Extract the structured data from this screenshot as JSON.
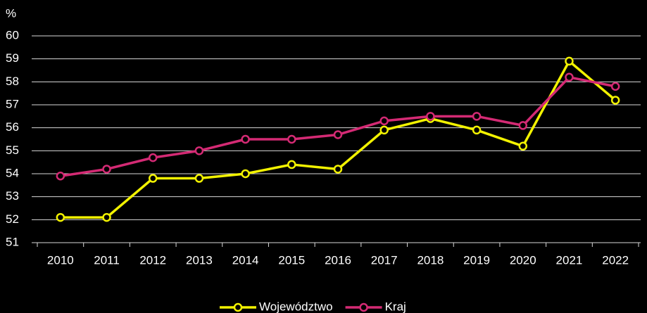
{
  "chart_data": {
    "type": "line",
    "y_label": "%",
    "categories": [
      "2010",
      "2011",
      "2012",
      "2013",
      "2014",
      "2015",
      "2016",
      "2017",
      "2018",
      "2019",
      "2020",
      "2021",
      "2022"
    ],
    "series": [
      {
        "name": "Województwo",
        "color": "#f2f200",
        "values": [
          52.1,
          52.1,
          53.8,
          53.8,
          54.0,
          54.4,
          54.2,
          55.9,
          56.4,
          55.9,
          55.2,
          58.9,
          57.2
        ]
      },
      {
        "name": "Kraj",
        "color": "#d42a74",
        "values": [
          53.9,
          54.2,
          54.7,
          55.0,
          55.5,
          55.5,
          55.7,
          56.3,
          56.5,
          56.5,
          56.1,
          58.2,
          57.8
        ]
      }
    ],
    "ylim": [
      51,
      60
    ],
    "yticks": [
      51,
      52,
      53,
      54,
      55,
      56,
      57,
      58,
      59,
      60
    ],
    "grid": true,
    "legend": "bottom"
  }
}
